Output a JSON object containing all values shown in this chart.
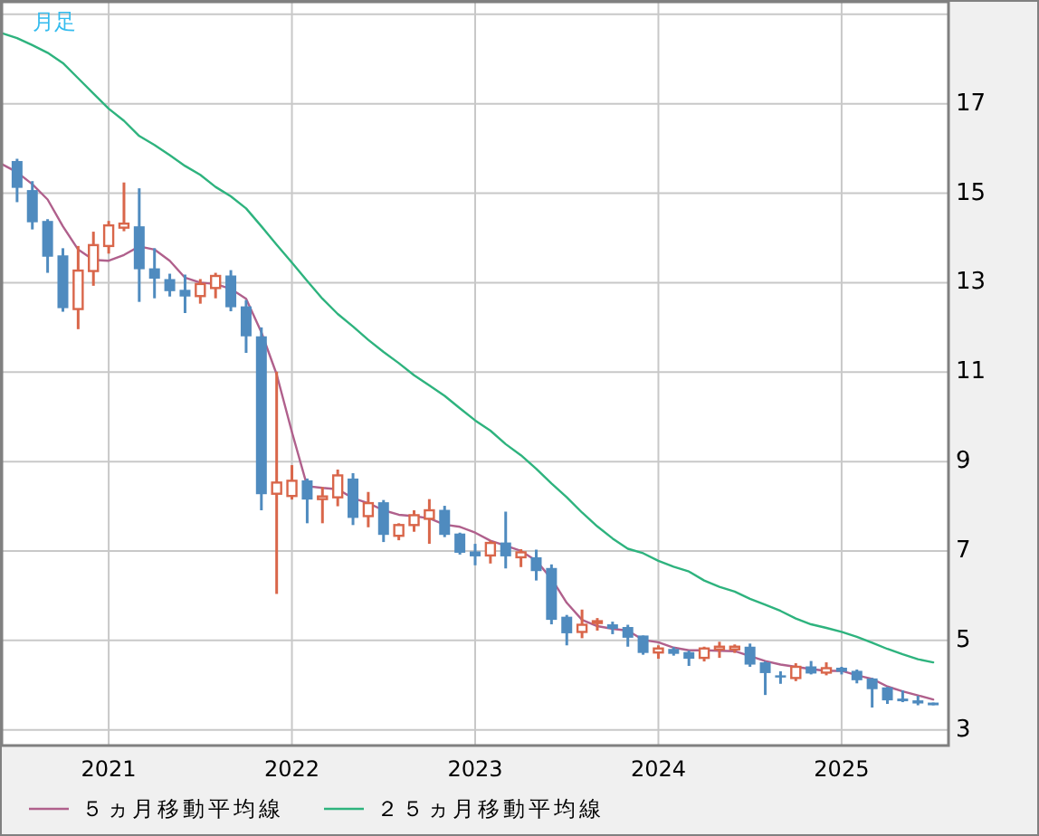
{
  "chart_data": {
    "type": "candlestick",
    "title": "月足",
    "x": [
      "2020-07",
      "2020-08",
      "2020-09",
      "2020-10",
      "2020-11",
      "2020-12",
      "2021-01",
      "2021-02",
      "2021-03",
      "2021-04",
      "2021-05",
      "2021-06",
      "2021-07",
      "2021-08",
      "2021-09",
      "2021-10",
      "2021-11",
      "2021-12",
      "2022-01",
      "2022-02",
      "2022-03",
      "2022-04",
      "2022-05",
      "2022-06",
      "2022-07",
      "2022-08",
      "2022-09",
      "2022-10",
      "2022-11",
      "2022-12",
      "2023-01",
      "2023-02",
      "2023-03",
      "2023-04",
      "2023-05",
      "2023-06",
      "2023-07",
      "2023-08",
      "2023-09",
      "2023-10",
      "2023-11",
      "2023-12",
      "2024-01",
      "2024-02",
      "2024-03",
      "2024-04",
      "2024-05",
      "2024-06",
      "2024-07",
      "2024-08",
      "2024-09",
      "2024-10",
      "2024-11",
      "2024-12",
      "2025-01",
      "2025-02",
      "2025-03",
      "2025-04",
      "2025-05",
      "2025-06",
      "2025-07"
    ],
    "ohlc": [
      [
        15.72,
        15.77,
        14.8,
        15.12
      ],
      [
        15.07,
        15.27,
        14.19,
        14.35
      ],
      [
        14.38,
        14.42,
        13.22,
        13.58
      ],
      [
        13.61,
        13.77,
        12.35,
        12.43
      ],
      [
        12.41,
        13.82,
        11.96,
        13.27
      ],
      [
        13.26,
        14.14,
        12.93,
        13.84
      ],
      [
        13.82,
        14.38,
        13.65,
        14.28
      ],
      [
        14.23,
        15.24,
        14.15,
        14.32
      ],
      [
        14.26,
        15.11,
        12.57,
        13.3
      ],
      [
        13.32,
        13.77,
        12.65,
        13.09
      ],
      [
        13.08,
        13.2,
        12.69,
        12.81
      ],
      [
        12.84,
        13.18,
        12.32,
        12.69
      ],
      [
        12.7,
        13.08,
        12.53,
        12.97
      ],
      [
        12.88,
        13.22,
        12.65,
        13.15
      ],
      [
        13.16,
        13.28,
        12.36,
        12.45
      ],
      [
        12.47,
        12.61,
        11.43,
        11.8
      ],
      [
        11.8,
        12.0,
        7.91,
        8.27
      ],
      [
        8.28,
        11.01,
        6.04,
        8.53
      ],
      [
        8.23,
        8.92,
        8.15,
        8.57
      ],
      [
        8.58,
        8.62,
        7.62,
        8.15
      ],
      [
        8.16,
        8.43,
        7.62,
        8.22
      ],
      [
        8.2,
        8.82,
        8.0,
        8.69
      ],
      [
        8.62,
        8.74,
        7.58,
        7.74
      ],
      [
        7.78,
        8.32,
        7.53,
        8.07
      ],
      [
        8.09,
        8.14,
        7.2,
        7.36
      ],
      [
        7.34,
        7.62,
        7.24,
        7.58
      ],
      [
        7.58,
        7.91,
        7.43,
        7.8
      ],
      [
        7.72,
        8.16,
        7.16,
        7.91
      ],
      [
        7.92,
        8.01,
        7.31,
        7.36
      ],
      [
        7.39,
        7.41,
        6.92,
        6.96
      ],
      [
        6.99,
        7.16,
        6.68,
        6.88
      ],
      [
        6.9,
        7.23,
        6.72,
        7.18
      ],
      [
        7.19,
        7.88,
        6.61,
        6.88
      ],
      [
        6.86,
        7.04,
        6.64,
        6.97
      ],
      [
        6.86,
        7.03,
        6.34,
        6.55
      ],
      [
        6.62,
        6.7,
        5.36,
        5.46
      ],
      [
        5.53,
        5.57,
        4.89,
        5.16
      ],
      [
        5.19,
        5.69,
        5.05,
        5.35
      ],
      [
        5.39,
        5.5,
        5.22,
        5.43
      ],
      [
        5.36,
        5.42,
        5.14,
        5.26
      ],
      [
        5.3,
        5.35,
        4.86,
        5.06
      ],
      [
        5.11,
        5.11,
        4.68,
        4.72
      ],
      [
        4.73,
        4.89,
        4.59,
        4.82
      ],
      [
        4.81,
        4.85,
        4.66,
        4.7
      ],
      [
        4.74,
        4.77,
        4.43,
        4.59
      ],
      [
        4.61,
        4.86,
        4.53,
        4.82
      ],
      [
        4.8,
        4.97,
        4.61,
        4.86
      ],
      [
        4.8,
        4.91,
        4.72,
        4.86
      ],
      [
        4.86,
        4.93,
        4.41,
        4.46
      ],
      [
        4.51,
        4.53,
        3.78,
        4.27
      ],
      [
        4.22,
        4.31,
        4.03,
        4.17
      ],
      [
        4.16,
        4.49,
        4.09,
        4.41
      ],
      [
        4.42,
        4.54,
        4.24,
        4.26
      ],
      [
        4.28,
        4.51,
        4.22,
        4.38
      ],
      [
        4.39,
        4.41,
        4.24,
        4.3
      ],
      [
        4.32,
        4.35,
        4.04,
        4.11
      ],
      [
        4.15,
        4.16,
        3.5,
        3.91
      ],
      [
        3.95,
        3.96,
        3.58,
        3.66
      ],
      [
        3.7,
        3.88,
        3.62,
        3.64
      ],
      [
        3.66,
        3.76,
        3.55,
        3.59
      ],
      [
        3.61,
        3.61,
        3.55,
        3.55
      ]
    ],
    "series": [
      {
        "name": "５ヵ月移動平均線",
        "type": "line",
        "color": "#b0608c",
        "x": [
          "2020-06",
          "2020-07",
          "2020-08",
          "2020-09",
          "2020-10",
          "2020-11",
          "2020-12",
          "2021-01",
          "2021-02",
          "2021-03",
          "2021-04",
          "2021-05",
          "2021-06",
          "2021-07",
          "2021-08",
          "2021-09",
          "2021-10",
          "2021-11",
          "2021-12",
          "2022-01",
          "2022-02",
          "2022-03",
          "2022-04",
          "2022-05",
          "2022-06",
          "2022-07",
          "2022-08",
          "2022-09",
          "2022-10",
          "2022-11",
          "2022-12",
          "2023-01",
          "2023-02",
          "2023-03",
          "2023-04",
          "2023-05",
          "2023-06",
          "2023-07",
          "2023-08",
          "2023-09",
          "2023-10",
          "2023-11",
          "2023-12",
          "2024-01",
          "2024-02",
          "2024-03",
          "2024-04",
          "2024-05",
          "2024-06",
          "2024-07",
          "2024-08",
          "2024-09",
          "2024-10",
          "2024-11",
          "2024-12",
          "2025-01",
          "2025-02",
          "2025-03",
          "2025-04",
          "2025-05",
          "2025-06",
          "2025-07"
        ],
        "values": [
          15.65,
          15.47,
          15.2,
          14.86,
          14.26,
          13.74,
          13.51,
          13.49,
          13.62,
          13.81,
          13.74,
          13.49,
          13.11,
          13.0,
          12.97,
          12.86,
          12.64,
          11.89,
          10.95,
          9.66,
          8.45,
          8.41,
          8.38,
          8.18,
          8.07,
          7.91,
          7.81,
          7.78,
          7.73,
          7.59,
          7.54,
          7.41,
          7.23,
          7.12,
          7.0,
          6.78,
          6.38,
          5.84,
          5.46,
          5.32,
          5.26,
          5.22,
          5.01,
          4.96,
          4.84,
          4.78,
          4.78,
          4.77,
          4.76,
          4.65,
          4.54,
          4.46,
          4.41,
          4.36,
          4.32,
          4.32,
          4.22,
          4.14,
          3.97,
          3.86,
          3.77,
          3.68
        ]
      },
      {
        "name": "２５ヵ月移動平均線",
        "type": "line",
        "color": "#2eb37e",
        "x": [
          "2020-06",
          "2020-07",
          "2020-08",
          "2020-09",
          "2020-10",
          "2020-11",
          "2020-12",
          "2021-01",
          "2021-02",
          "2021-03",
          "2021-04",
          "2021-05",
          "2021-06",
          "2021-07",
          "2021-08",
          "2021-09",
          "2021-10",
          "2021-11",
          "2021-12",
          "2022-01",
          "2022-02",
          "2022-03",
          "2022-04",
          "2022-05",
          "2022-06",
          "2022-07",
          "2022-08",
          "2022-09",
          "2022-10",
          "2022-11",
          "2022-12",
          "2023-01",
          "2023-02",
          "2023-03",
          "2023-04",
          "2023-05",
          "2023-06",
          "2023-07",
          "2023-08",
          "2023-09",
          "2023-10",
          "2023-11",
          "2023-12",
          "2024-01",
          "2024-02",
          "2024-03",
          "2024-04",
          "2024-05",
          "2024-06",
          "2024-07",
          "2024-08",
          "2024-09",
          "2024-10",
          "2024-11",
          "2024-12",
          "2025-01",
          "2025-02",
          "2025-03",
          "2025-04",
          "2025-05",
          "2025-06",
          "2025-07"
        ],
        "values": [
          18.58,
          18.47,
          18.31,
          18.14,
          17.91,
          17.57,
          17.23,
          16.89,
          16.62,
          16.28,
          16.08,
          15.85,
          15.61,
          15.41,
          15.14,
          14.93,
          14.66,
          14.26,
          13.85,
          13.45,
          13.04,
          12.64,
          12.3,
          12.02,
          11.72,
          11.45,
          11.2,
          10.93,
          10.7,
          10.47,
          10.19,
          9.92,
          9.69,
          9.39,
          9.14,
          8.84,
          8.51,
          8.2,
          7.86,
          7.55,
          7.28,
          7.05,
          6.95,
          6.78,
          6.65,
          6.54,
          6.34,
          6.2,
          6.09,
          5.93,
          5.8,
          5.66,
          5.49,
          5.36,
          5.28,
          5.19,
          5.08,
          4.95,
          4.81,
          4.69,
          4.58,
          4.51
        ]
      }
    ],
    "xlim": [
      "2020-06",
      "2025-08"
    ],
    "xticks": [
      "2021",
      "2022",
      "2023",
      "2024",
      "2025"
    ],
    "ylim": [
      2.65,
      19.28
    ],
    "yticks": [
      3,
      5,
      7,
      9,
      11,
      13,
      15,
      17,
      {
        "value": 19,
        "label": null
      }
    ],
    "grid": true,
    "legend": "bottom"
  }
}
